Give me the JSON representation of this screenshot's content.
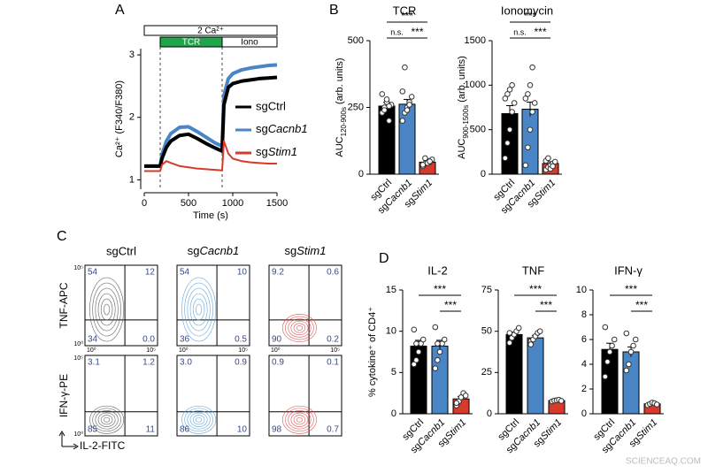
{
  "panels": [
    "A",
    "B",
    "C",
    "D"
  ],
  "chart_data": [
    {
      "type": "line",
      "x_label": "Time (s)",
      "y_label": "Ca²⁺ (F340/F380)",
      "annotation": "2 Ca²⁺",
      "events": [
        {
          "label": "TCR",
          "start": 180,
          "end": 880,
          "color": "#1fa64a"
        },
        {
          "label": "Iono",
          "start": 880,
          "end": 1500,
          "color": "#ffffff"
        }
      ],
      "x": [
        0,
        100,
        180,
        200,
        250,
        300,
        400,
        500,
        600,
        700,
        800,
        880,
        900,
        950,
        1000,
        1100,
        1200,
        1300,
        1400,
        1500
      ],
      "series": [
        {
          "name": "sgCacnb1",
          "color": "#4a86c5",
          "values": [
            1.22,
            1.22,
            1.22,
            1.4,
            1.62,
            1.74,
            1.84,
            1.85,
            1.77,
            1.68,
            1.59,
            1.54,
            2.35,
            2.62,
            2.7,
            2.76,
            2.79,
            2.81,
            2.83,
            2.84
          ]
        },
        {
          "name": "sgCtrl",
          "color": "#000000",
          "values": [
            1.22,
            1.22,
            1.22,
            1.34,
            1.52,
            1.62,
            1.71,
            1.73,
            1.66,
            1.58,
            1.51,
            1.46,
            2.2,
            2.48,
            2.54,
            2.58,
            2.6,
            2.62,
            2.63,
            2.64
          ]
        },
        {
          "name": "sgStim1",
          "color": "#d73a2a",
          "values": [
            1.14,
            1.14,
            1.14,
            1.24,
            1.3,
            1.27,
            1.22,
            1.2,
            1.18,
            1.17,
            1.16,
            1.15,
            1.62,
            1.42,
            1.34,
            1.3,
            1.28,
            1.27,
            1.26,
            1.26
          ]
        }
      ],
      "xlim": [
        0,
        1500
      ],
      "xticks": [
        0,
        500,
        1000,
        1500
      ],
      "ylim": [
        0.85,
        3.1
      ],
      "yticks": [
        1,
        2,
        3
      ],
      "legend_order": [
        "sgCtrl",
        "sgCacnb1",
        "sgStim1"
      ]
    },
    {
      "type": "bar",
      "title": "TCR",
      "categories": [
        "sgCtrl",
        "sgCacnb1",
        "sgStim1"
      ],
      "values": [
        255,
        262,
        45
      ],
      "errors": [
        14,
        18,
        5
      ],
      "points": [
        [
          230,
          250,
          270,
          200,
          260,
          300,
          240,
          280,
          255
        ],
        [
          200,
          230,
          250,
          270,
          290,
          310,
          400,
          240,
          260
        ],
        [
          30,
          40,
          50,
          45,
          55,
          35,
          60,
          42,
          48
        ]
      ],
      "colors": [
        "#000000",
        "#4a86c5",
        "#d73a2a"
      ],
      "ylim": [
        0,
        500
      ],
      "yticks": [
        0,
        250,
        500
      ],
      "y_label": "AUC",
      "y_label_sub": "120-900s",
      "y_label_unit": " (arb. units)",
      "comparisons": [
        {
          "between": [
            "sgCtrl",
            "sgStim1"
          ],
          "label": "***"
        },
        {
          "between": [
            "sgCtrl",
            "sgCacnb1"
          ],
          "label": "n.s."
        },
        {
          "between": [
            "sgCacnb1",
            "sgStim1"
          ],
          "label": "***"
        }
      ]
    },
    {
      "type": "bar",
      "title": "Ionomycin",
      "categories": [
        "sgCtrl",
        "sgCacnb1",
        "sgStim1"
      ],
      "values": [
        680,
        730,
        120
      ],
      "errors": [
        90,
        80,
        20
      ],
      "points": [
        [
          180,
          350,
          500,
          700,
          800,
          850,
          900,
          950,
          1000
        ],
        [
          100,
          300,
          500,
          700,
          800,
          850,
          900,
          1000,
          1200
        ],
        [
          50,
          80,
          100,
          120,
          140,
          150,
          180,
          60,
          90
        ]
      ],
      "colors": [
        "#000000",
        "#4a86c5",
        "#d73a2a"
      ],
      "ylim": [
        0,
        1500
      ],
      "yticks": [
        0,
        500,
        1000,
        1500
      ],
      "y_label": "AUC",
      "y_label_sub": "900-1500s",
      "y_label_unit": " (arb. units)",
      "comparisons": [
        {
          "between": [
            "sgCtrl",
            "sgStim1"
          ],
          "label": "***"
        },
        {
          "between": [
            "sgCtrl",
            "sgCacnb1"
          ],
          "label": "n.s."
        },
        {
          "between": [
            "sgCacnb1",
            "sgStim1"
          ],
          "label": "***"
        }
      ]
    },
    {
      "type": "bar",
      "title": "IL-2",
      "categories": [
        "sgCtrl",
        "sgCacnb1",
        "sgStim1"
      ],
      "values": [
        8.2,
        8.2,
        1.8
      ],
      "errors": [
        0.7,
        0.7,
        0.3
      ],
      "points": [
        [
          6,
          6.5,
          7.5,
          8.5,
          9,
          10.2,
          8.5
        ],
        [
          5.5,
          6.5,
          7.5,
          8.5,
          9,
          10.5,
          8.5
        ],
        [
          1,
          1.5,
          2,
          2.5,
          2.2,
          1.3
        ]
      ],
      "colors": [
        "#000000",
        "#4a86c5",
        "#d73a2a"
      ],
      "ylim": [
        0,
        15
      ],
      "yticks": [
        0,
        5,
        10,
        15
      ],
      "y_label": "% cytokine⁺ of CD4⁺",
      "comparisons": [
        {
          "between": [
            "sgCtrl",
            "sgStim1"
          ],
          "label": "***"
        },
        {
          "between": [
            "sgCacnb1",
            "sgStim1"
          ],
          "label": "***"
        }
      ]
    },
    {
      "type": "bar",
      "title": "TNF",
      "categories": [
        "sgCtrl",
        "sgCacnb1",
        "sgStim1"
      ],
      "values": [
        48,
        46,
        8
      ],
      "errors": [
        1.5,
        1.5,
        0.4
      ],
      "points": [
        [
          43,
          46,
          48,
          50,
          52,
          49
        ],
        [
          44,
          45,
          47,
          49,
          50,
          42
        ],
        [
          7.5,
          8,
          8.2,
          8.5,
          7.8
        ]
      ],
      "colors": [
        "#000000",
        "#4a86c5",
        "#d73a2a"
      ],
      "ylim": [
        0,
        75
      ],
      "yticks": [
        0,
        25,
        50,
        75
      ],
      "comparisons": [
        {
          "between": [
            "sgCtrl",
            "sgStim1"
          ],
          "label": "***"
        },
        {
          "between": [
            "sgCacnb1",
            "sgStim1"
          ],
          "label": "***"
        }
      ]
    },
    {
      "type": "bar",
      "title": "IFN-γ",
      "categories": [
        "sgCtrl",
        "sgCacnb1",
        "sgStim1"
      ],
      "values": [
        5.2,
        5.0,
        0.8
      ],
      "errors": [
        0.5,
        0.4,
        0.05
      ],
      "points": [
        [
          3,
          4.2,
          5,
          5.5,
          6,
          7
        ],
        [
          3.5,
          4,
          5,
          5.5,
          6,
          6.5
        ],
        [
          0.7,
          0.8,
          0.9,
          0.85,
          0.75
        ]
      ],
      "colors": [
        "#000000",
        "#4a86c5",
        "#d73a2a"
      ],
      "ylim": [
        0,
        10
      ],
      "yticks": [
        0,
        2,
        4,
        6,
        8,
        10
      ],
      "comparisons": [
        {
          "between": [
            "sgCtrl",
            "sgStim1"
          ],
          "label": "***"
        },
        {
          "between": [
            "sgCacnb1",
            "sgStim1"
          ],
          "label": "***"
        }
      ]
    }
  ],
  "flow": {
    "columns": [
      "sgCtrl",
      "sgCacnb1",
      "sgStim1"
    ],
    "colors": [
      "#555555",
      "#5a9fd4",
      "#e04848"
    ],
    "rows": [
      {
        "y_label": "TNF-APC",
        "quadrants": [
          [
            "54",
            "12",
            "34",
            "0.0"
          ],
          [
            "54",
            "10",
            "36",
            "0.5"
          ],
          [
            "9.2",
            "0.6",
            "90",
            "0.2"
          ]
        ]
      },
      {
        "y_label": "IFN-γ-PE",
        "quadrants": [
          [
            "3.1",
            "1.2",
            "85",
            "11"
          ],
          [
            "3.0",
            "0.9",
            "86",
            "10"
          ],
          [
            "0.9",
            "0.1",
            "98",
            "0.7"
          ]
        ]
      }
    ],
    "x_label": "IL-2-FITC",
    "axis_ticks": [
      "10⁰",
      "10⁵"
    ]
  },
  "watermark": "SCIENCEAQ.COM"
}
